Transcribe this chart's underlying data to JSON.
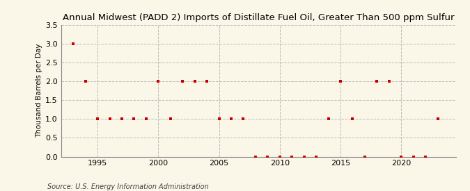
{
  "title": "Annual Midwest (PADD 2) Imports of Distillate Fuel Oil, Greater Than 500 ppm Sulfur",
  "ylabel": "Thousand Barrels per Day",
  "source": "Source: U.S. Energy Information Administration",
  "background_color": "#faf6e8",
  "plot_background_color": "#faf6e8",
  "marker_color": "#cc0000",
  "years": [
    1993,
    1994,
    1995,
    1996,
    1997,
    1998,
    1999,
    2000,
    2001,
    2002,
    2003,
    2004,
    2005,
    2006,
    2007,
    2008,
    2009,
    2010,
    2011,
    2012,
    2013,
    2014,
    2015,
    2016,
    2017,
    2018,
    2019,
    2020,
    2021,
    2022,
    2023
  ],
  "values": [
    3.0,
    2.0,
    1.0,
    1.0,
    1.0,
    1.0,
    1.0,
    2.0,
    1.0,
    2.0,
    2.0,
    2.0,
    1.0,
    1.0,
    1.0,
    0.0,
    0.0,
    0.0,
    0.0,
    0.0,
    0.0,
    1.0,
    2.0,
    1.0,
    0.0,
    2.0,
    2.0,
    0.0,
    0.0,
    0.0,
    1.0
  ],
  "xlim": [
    1992.0,
    2024.5
  ],
  "ylim": [
    0.0,
    3.5
  ],
  "yticks": [
    0.0,
    0.5,
    1.0,
    1.5,
    2.0,
    2.5,
    3.0,
    3.5
  ],
  "xticks": [
    1995,
    2000,
    2005,
    2010,
    2015,
    2020
  ],
  "grid_color": "#bbbbbb",
  "title_fontsize": 9.5,
  "label_fontsize": 7.5,
  "tick_fontsize": 8,
  "source_fontsize": 7
}
